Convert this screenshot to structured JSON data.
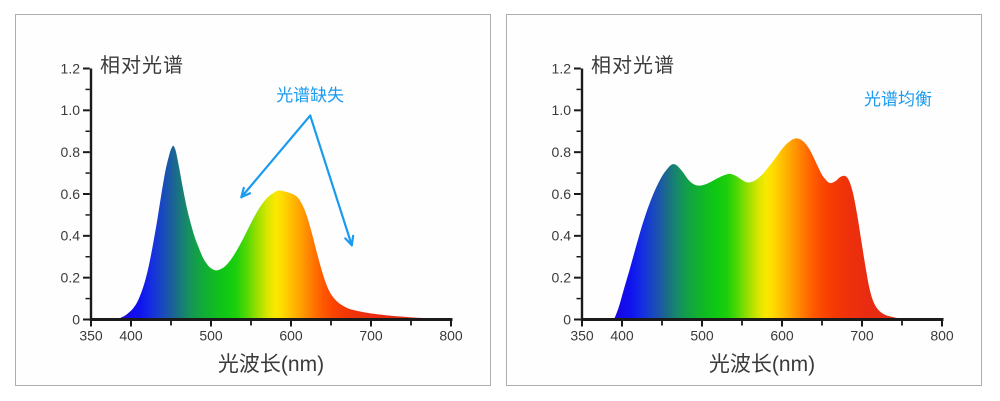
{
  "colors": {
    "background": "#ffffff",
    "panel_background": "#fefefe",
    "panel_border": "#adadad",
    "text": "#3a3a3a",
    "axis": "#1a1a1a",
    "annotation_blue": "#1b9bef"
  },
  "chart_data": [
    {
      "type": "area",
      "title": "相对光谱",
      "xlabel": "光波长(nm)",
      "ylabel": "",
      "xlim": [
        350,
        800
      ],
      "ylim": [
        0,
        1.2
      ],
      "grid": false,
      "x_ticks_major": [
        {
          "v": 350,
          "label": "350"
        },
        {
          "v": 400,
          "label": "400"
        },
        {
          "v": 500,
          "label": "500"
        },
        {
          "v": 600,
          "label": "600"
        },
        {
          "v": 700,
          "label": "700"
        },
        {
          "v": 800,
          "label": "800"
        }
      ],
      "x_ticks_minor": [
        450,
        550,
        650,
        750
      ],
      "y_ticks_major": [
        {
          "v": 0,
          "label": "0"
        },
        {
          "v": 0.2,
          "label": "0.2"
        },
        {
          "v": 0.4,
          "label": "0.4"
        },
        {
          "v": 0.6,
          "label": "0.6"
        },
        {
          "v": 0.8,
          "label": "0.8"
        },
        {
          "v": 1.0,
          "label": "1.0"
        },
        {
          "v": 1.2,
          "label": "1.2"
        }
      ],
      "y_ticks_minor": [
        0.1,
        0.3,
        0.5,
        0.7,
        0.9,
        1.1
      ],
      "fill": "spectrum-gradient",
      "spectrum_gradient_stops": [
        [
          385,
          "#2A05C2"
        ],
        [
          398,
          "#150AE6"
        ],
        [
          412,
          "#0F14F0"
        ],
        [
          425,
          "#152DE2"
        ],
        [
          437,
          "#1844C6"
        ],
        [
          447,
          "#1B57A8"
        ],
        [
          455,
          "#1B688E"
        ],
        [
          463,
          "#187C78"
        ],
        [
          472,
          "#159060"
        ],
        [
          482,
          "#12A148"
        ],
        [
          493,
          "#11AF33"
        ],
        [
          505,
          "#10BC20"
        ],
        [
          518,
          "#0FC813"
        ],
        [
          532,
          "#1ED00B"
        ],
        [
          545,
          "#55D805"
        ],
        [
          558,
          "#9CDF00"
        ],
        [
          570,
          "#D6E600"
        ],
        [
          580,
          "#F8E800"
        ],
        [
          588,
          "#FFDD00"
        ],
        [
          598,
          "#FFC400"
        ],
        [
          608,
          "#FFAB00"
        ],
        [
          618,
          "#FF9100"
        ],
        [
          628,
          "#FF7500"
        ],
        [
          640,
          "#FF5800"
        ],
        [
          652,
          "#FA4600"
        ],
        [
          665,
          "#F43A04"
        ],
        [
          680,
          "#EF320A"
        ],
        [
          700,
          "#EA2D10"
        ],
        [
          725,
          "#E72B13"
        ],
        [
          770,
          "#E52A15"
        ]
      ],
      "points": [
        [
          383,
          0
        ],
        [
          388,
          0.01
        ],
        [
          393,
          0.02
        ],
        [
          398,
          0.035
        ],
        [
          403,
          0.055
        ],
        [
          408,
          0.085
        ],
        [
          413,
          0.13
        ],
        [
          418,
          0.19
        ],
        [
          423,
          0.27
        ],
        [
          428,
          0.37
        ],
        [
          433,
          0.48
        ],
        [
          438,
          0.6
        ],
        [
          443,
          0.71
        ],
        [
          448,
          0.79
        ],
        [
          451,
          0.822
        ],
        [
          453,
          0.83
        ],
        [
          456,
          0.805
        ],
        [
          460,
          0.73
        ],
        [
          465,
          0.625
        ],
        [
          470,
          0.53
        ],
        [
          475,
          0.455
        ],
        [
          480,
          0.39
        ],
        [
          485,
          0.34
        ],
        [
          490,
          0.295
        ],
        [
          495,
          0.265
        ],
        [
          500,
          0.245
        ],
        [
          506,
          0.235
        ],
        [
          512,
          0.241
        ],
        [
          518,
          0.256
        ],
        [
          524,
          0.282
        ],
        [
          530,
          0.316
        ],
        [
          536,
          0.356
        ],
        [
          542,
          0.4
        ],
        [
          548,
          0.446
        ],
        [
          554,
          0.49
        ],
        [
          560,
          0.53
        ],
        [
          566,
          0.563
        ],
        [
          572,
          0.588
        ],
        [
          578,
          0.605
        ],
        [
          584,
          0.616
        ],
        [
          590,
          0.614
        ],
        [
          596,
          0.608
        ],
        [
          602,
          0.6
        ],
        [
          608,
          0.585
        ],
        [
          613,
          0.557
        ],
        [
          618,
          0.515
        ],
        [
          623,
          0.455
        ],
        [
          628,
          0.385
        ],
        [
          633,
          0.31
        ],
        [
          638,
          0.24
        ],
        [
          643,
          0.18
        ],
        [
          648,
          0.135
        ],
        [
          653,
          0.105
        ],
        [
          658,
          0.085
        ],
        [
          664,
          0.068
        ],
        [
          672,
          0.052
        ],
        [
          682,
          0.042
        ],
        [
          692,
          0.034
        ],
        [
          702,
          0.028
        ],
        [
          715,
          0.022
        ],
        [
          730,
          0.016
        ],
        [
          748,
          0.011
        ],
        [
          766,
          0.007
        ],
        [
          785,
          0.004
        ],
        [
          800,
          0.002
        ]
      ],
      "annotation": {
        "text": "光谱缺失",
        "color": "#1b9bef",
        "x": 624,
        "y": 1.065,
        "arrows": [
          {
            "x1": 624,
            "y1": 0.975,
            "x2": 538,
            "y2": 0.585
          },
          {
            "x1": 624,
            "y1": 0.975,
            "x2": 676,
            "y2": 0.355
          }
        ]
      }
    },
    {
      "type": "area",
      "title": "相对光谱",
      "xlabel": "光波长(nm)",
      "ylabel": "",
      "xlim": [
        350,
        800
      ],
      "ylim": [
        0,
        1.2
      ],
      "grid": false,
      "x_ticks_major": [
        {
          "v": 350,
          "label": "350"
        },
        {
          "v": 400,
          "label": "400"
        },
        {
          "v": 500,
          "label": "500"
        },
        {
          "v": 600,
          "label": "600"
        },
        {
          "v": 700,
          "label": "700"
        },
        {
          "v": 800,
          "label": "800"
        }
      ],
      "x_ticks_minor": [
        450,
        550,
        650,
        750
      ],
      "y_ticks_major": [
        {
          "v": 0,
          "label": "0"
        },
        {
          "v": 0.2,
          "label": "0.2"
        },
        {
          "v": 0.4,
          "label": "0.4"
        },
        {
          "v": 0.6,
          "label": "0.6"
        },
        {
          "v": 0.8,
          "label": "0.8"
        },
        {
          "v": 1.0,
          "label": "1.0"
        },
        {
          "v": 1.2,
          "label": "1.2"
        }
      ],
      "y_ticks_minor": [
        0.1,
        0.3,
        0.5,
        0.7,
        0.9,
        1.1
      ],
      "fill": "spectrum-gradient",
      "spectrum_gradient_stops": [
        [
          385,
          "#2A05C2"
        ],
        [
          398,
          "#150AE6"
        ],
        [
          412,
          "#0F14F0"
        ],
        [
          425,
          "#152DE2"
        ],
        [
          437,
          "#1844C6"
        ],
        [
          447,
          "#1B57A8"
        ],
        [
          455,
          "#1B688E"
        ],
        [
          463,
          "#187C78"
        ],
        [
          472,
          "#159060"
        ],
        [
          482,
          "#12A148"
        ],
        [
          493,
          "#11AF33"
        ],
        [
          505,
          "#10BC20"
        ],
        [
          518,
          "#0FC813"
        ],
        [
          532,
          "#1ED00B"
        ],
        [
          545,
          "#55D805"
        ],
        [
          558,
          "#9CDF00"
        ],
        [
          570,
          "#D6E600"
        ],
        [
          580,
          "#F8E800"
        ],
        [
          588,
          "#FFDD00"
        ],
        [
          598,
          "#FFC400"
        ],
        [
          608,
          "#FFAB00"
        ],
        [
          618,
          "#FF9100"
        ],
        [
          628,
          "#FF7500"
        ],
        [
          640,
          "#FF5800"
        ],
        [
          652,
          "#FA4600"
        ],
        [
          665,
          "#F43A04"
        ],
        [
          680,
          "#EF320A"
        ],
        [
          700,
          "#EA2D10"
        ],
        [
          725,
          "#E72B13"
        ],
        [
          770,
          "#E52A15"
        ]
      ],
      "points": [
        [
          390,
          0
        ],
        [
          396,
          0.06
        ],
        [
          402,
          0.14
        ],
        [
          410,
          0.245
        ],
        [
          418,
          0.355
        ],
        [
          426,
          0.46
        ],
        [
          434,
          0.55
        ],
        [
          442,
          0.625
        ],
        [
          450,
          0.685
        ],
        [
          457,
          0.722
        ],
        [
          463,
          0.742
        ],
        [
          469,
          0.735
        ],
        [
          476,
          0.705
        ],
        [
          483,
          0.668
        ],
        [
          490,
          0.646
        ],
        [
          497,
          0.64
        ],
        [
          505,
          0.647
        ],
        [
          513,
          0.662
        ],
        [
          521,
          0.678
        ],
        [
          528,
          0.69
        ],
        [
          535,
          0.696
        ],
        [
          542,
          0.687
        ],
        [
          549,
          0.67
        ],
        [
          556,
          0.656
        ],
        [
          562,
          0.658
        ],
        [
          569,
          0.672
        ],
        [
          577,
          0.7
        ],
        [
          585,
          0.738
        ],
        [
          593,
          0.778
        ],
        [
          601,
          0.82
        ],
        [
          609,
          0.85
        ],
        [
          616,
          0.865
        ],
        [
          623,
          0.861
        ],
        [
          630,
          0.838
        ],
        [
          637,
          0.795
        ],
        [
          644,
          0.738
        ],
        [
          650,
          0.692
        ],
        [
          656,
          0.663
        ],
        [
          661,
          0.652
        ],
        [
          667,
          0.662
        ],
        [
          673,
          0.682
        ],
        [
          679,
          0.686
        ],
        [
          684,
          0.662
        ],
        [
          689,
          0.6
        ],
        [
          694,
          0.5
        ],
        [
          699,
          0.38
        ],
        [
          704,
          0.26
        ],
        [
          709,
          0.155
        ],
        [
          714,
          0.088
        ],
        [
          720,
          0.048
        ],
        [
          728,
          0.024
        ],
        [
          738,
          0.012
        ],
        [
          748,
          0.005
        ],
        [
          758,
          0
        ]
      ],
      "annotation": {
        "text": "光谱均衡",
        "color": "#1b9bef",
        "x": 745,
        "y": 1.045,
        "arrows": []
      }
    }
  ]
}
